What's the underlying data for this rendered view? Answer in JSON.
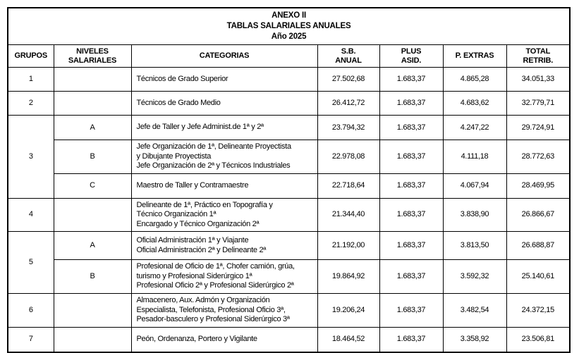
{
  "title": {
    "line1": "ANEXO II",
    "line2": "TABLAS SALARIALES ANUALES",
    "line3": "Año 2025"
  },
  "headers": {
    "grupos": "GRUPOS",
    "niveles": "NIVELES\nSALARIALES",
    "categorias": "CATEGORIAS",
    "sb_anual": "S.B.\nANUAL",
    "plus_asid": "PLUS\nASID.",
    "p_extras": "P. EXTRAS",
    "total_retrib": "TOTAL\nRETRIB."
  },
  "rows": [
    {
      "grupo": "1",
      "nivel": "",
      "categoria": "Técnicos de Grado Superior",
      "sb": "27.502,68",
      "plus": "1.683,37",
      "extras": "4.865,28",
      "total": "34.051,33"
    },
    {
      "grupo": "2",
      "nivel": "",
      "categoria": "Técnicos de Grado Medio",
      "sb": "26.412,72",
      "plus": "1.683,37",
      "extras": "4.683,62",
      "total": "32.779,71"
    },
    {
      "grupo": "3",
      "nivel": "A",
      "categoria": "Jefe de Taller y Jefe Administ.de 1ª y 2ª",
      "sb": "23.794,32",
      "plus": "1.683,37",
      "extras": "4.247,22",
      "total": "29.724,91"
    },
    {
      "nivel": "B",
      "categoria": "Jefe Organización de 1ª, Delineante Proyectista\ny Dibujante Proyectista\nJefe Organización de 2ª y Técnicos Industriales",
      "sb": "22.978,08",
      "plus": "1.683,37",
      "extras": "4.111,18",
      "total": "28.772,63"
    },
    {
      "nivel": "C",
      "categoria": "Maestro de Taller y Contramaestre",
      "sb": "22.718,64",
      "plus": "1.683,37",
      "extras": "4.067,94",
      "total": "28.469,95"
    },
    {
      "grupo": "4",
      "nivel": "",
      "categoria": "Delineante de 1ª, Práctico en Topografía y\nTécnico Organización 1ª\nEncargado y Técnico Organización 2ª",
      "sb": "21.344,40",
      "plus": "1.683,37",
      "extras": "3.838,90",
      "total": "26.866,67"
    },
    {
      "grupo": "5",
      "nivel": "A",
      "categoria": "Oficial Administración 1ª y Viajante\nOficial Administración 2ª y Delineante 2ª",
      "sb": "21.192,00",
      "plus": "1.683,37",
      "extras": "3.813,50",
      "total": "26.688,87"
    },
    {
      "nivel": "B",
      "categoria": "Profesional de Oficio de 1ª, Chofer camión, grúa,\nturismo y Profesional Siderúrgico 1ª\nProfesional Oficio 2ª y Profesional Siderúrgico 2ª",
      "sb": "19.864,92",
      "plus": "1.683,37",
      "extras": "3.592,32",
      "total": "25.140,61"
    },
    {
      "grupo": "6",
      "nivel": "",
      "categoria": "Almacenero, Aux. Admón y Organización\nEspecialista, Telefonista, Profesional Oficio 3ª,\nPesador-basculero y Profesional Siderúrgico 3ª",
      "sb": "19.206,24",
      "plus": "1.683,37",
      "extras": "3.482,54",
      "total": "24.372,15"
    },
    {
      "grupo": "7",
      "nivel": "",
      "categoria": "Peón, Ordenanza, Portero y Vigilante",
      "sb": "18.464,52",
      "plus": "1.683,37",
      "extras": "3.358,92",
      "total": "23.506,81"
    }
  ]
}
